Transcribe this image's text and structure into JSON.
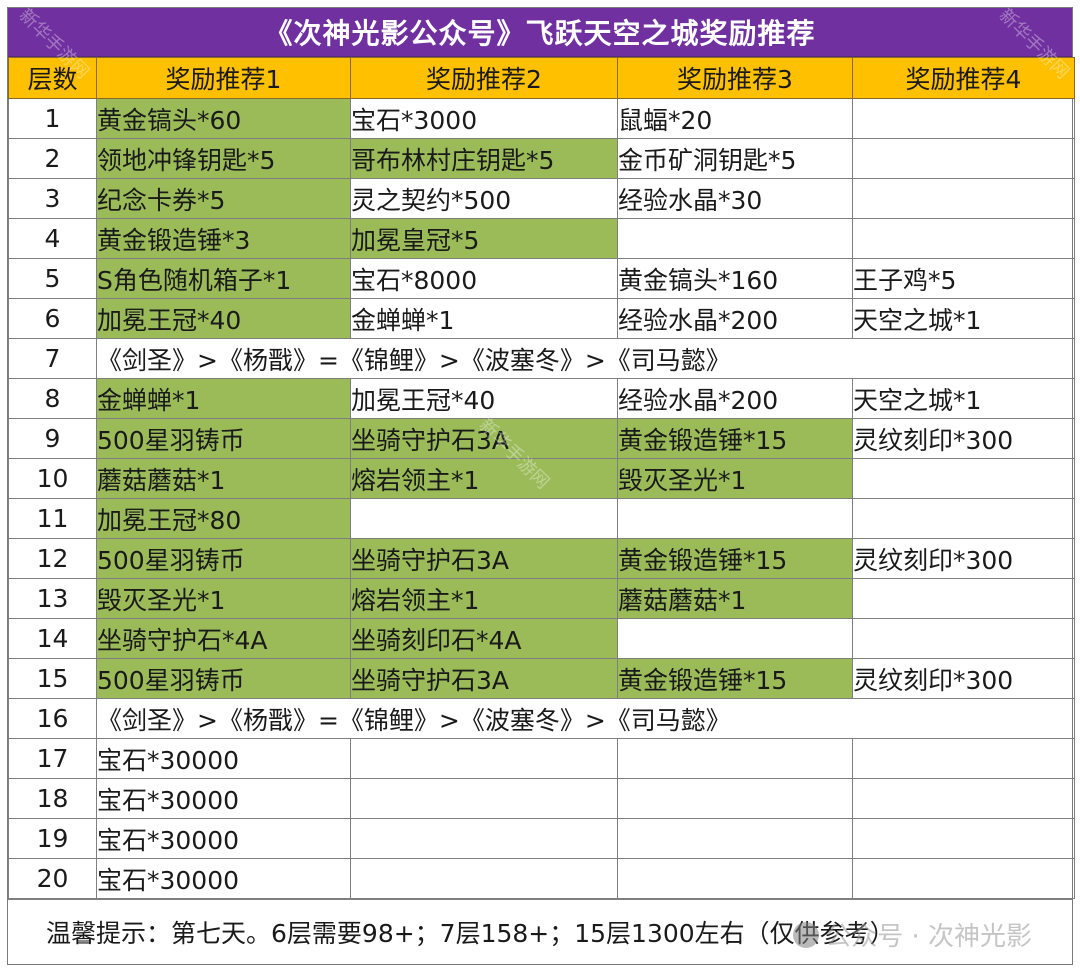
{
  "title": "《次神光影公众号》飞跃天空之城奖励推荐",
  "header": {
    "columns": [
      "层数",
      "奖励推荐1",
      "奖励推荐2",
      "奖励推荐3",
      "奖励推荐4"
    ]
  },
  "colors": {
    "title_bg": "#7030A0",
    "header_bg": "#FFC000",
    "highlight_green": "#9BBB59",
    "border": "#7f7f7f"
  },
  "rows": [
    {
      "floor": "1",
      "cells": [
        {
          "text": "黄金镐头*60",
          "hl": true
        },
        {
          "text": "宝石*3000",
          "hl": false
        },
        {
          "text": "鼠蝠*20",
          "hl": false
        },
        {
          "text": "",
          "hl": false
        }
      ]
    },
    {
      "floor": "2",
      "cells": [
        {
          "text": "领地冲锋钥匙*5",
          "hl": true
        },
        {
          "text": "哥布林村庄钥匙*5",
          "hl": true
        },
        {
          "text": "金币矿洞钥匙*5",
          "hl": false
        },
        {
          "text": "",
          "hl": false
        }
      ]
    },
    {
      "floor": "3",
      "cells": [
        {
          "text": "纪念卡券*5",
          "hl": true
        },
        {
          "text": "灵之契约*500",
          "hl": false
        },
        {
          "text": "经验水晶*30",
          "hl": false
        },
        {
          "text": "",
          "hl": false
        }
      ]
    },
    {
      "floor": "4",
      "cells": [
        {
          "text": "黄金锻造锤*3",
          "hl": true
        },
        {
          "text": "加冕皇冠*5",
          "hl": true
        },
        {
          "text": "",
          "hl": false
        },
        {
          "text": "",
          "hl": false
        }
      ]
    },
    {
      "floor": "5",
      "cells": [
        {
          "text": "S角色随机箱子*1",
          "hl": true
        },
        {
          "text": "宝石*8000",
          "hl": false
        },
        {
          "text": "黄金镐头*160",
          "hl": false
        },
        {
          "text": "王子鸡*5",
          "hl": false
        }
      ]
    },
    {
      "floor": "6",
      "cells": [
        {
          "text": "加冕王冠*40",
          "hl": true
        },
        {
          "text": "金蝉蝉*1",
          "hl": false
        },
        {
          "text": "经验水晶*200",
          "hl": false
        },
        {
          "text": "天空之城*1",
          "hl": false
        }
      ]
    },
    {
      "floor": "7",
      "merged": "《剑圣》>《杨戬》=《锦鲤》>《波塞冬》>《司马懿》"
    },
    {
      "floor": "8",
      "cells": [
        {
          "text": "金蝉蝉*1",
          "hl": true
        },
        {
          "text": "加冕王冠*40",
          "hl": false
        },
        {
          "text": "经验水晶*200",
          "hl": false
        },
        {
          "text": "天空之城*1",
          "hl": false
        }
      ]
    },
    {
      "floor": "9",
      "cells": [
        {
          "text": "500星羽铸币",
          "hl": true
        },
        {
          "text": "坐骑守护石3A",
          "hl": true
        },
        {
          "text": "黄金锻造锤*15",
          "hl": true
        },
        {
          "text": "灵纹刻印*300",
          "hl": false
        }
      ]
    },
    {
      "floor": "10",
      "cells": [
        {
          "text": "蘑菇蘑菇*1",
          "hl": true
        },
        {
          "text": "熔岩领主*1",
          "hl": true
        },
        {
          "text": "毁灭圣光*1",
          "hl": true
        },
        {
          "text": "",
          "hl": false
        }
      ]
    },
    {
      "floor": "11",
      "cells": [
        {
          "text": "加冕王冠*80",
          "hl": true
        },
        {
          "text": "",
          "hl": false
        },
        {
          "text": "",
          "hl": false
        },
        {
          "text": "",
          "hl": false
        }
      ]
    },
    {
      "floor": "12",
      "cells": [
        {
          "text": "500星羽铸币",
          "hl": true
        },
        {
          "text": "坐骑守护石3A",
          "hl": true
        },
        {
          "text": "黄金锻造锤*15",
          "hl": true
        },
        {
          "text": "灵纹刻印*300",
          "hl": false
        }
      ]
    },
    {
      "floor": "13",
      "cells": [
        {
          "text": "毁灭圣光*1",
          "hl": true
        },
        {
          "text": "熔岩领主*1",
          "hl": true
        },
        {
          "text": "蘑菇蘑菇*1",
          "hl": true
        },
        {
          "text": "",
          "hl": false
        }
      ]
    },
    {
      "floor": "14",
      "cells": [
        {
          "text": "坐骑守护石*4A",
          "hl": true
        },
        {
          "text": "坐骑刻印石*4A",
          "hl": true
        },
        {
          "text": "",
          "hl": false
        },
        {
          "text": "",
          "hl": false
        }
      ]
    },
    {
      "floor": "15",
      "cells": [
        {
          "text": "500星羽铸币",
          "hl": true
        },
        {
          "text": "坐骑守护石3A",
          "hl": true
        },
        {
          "text": "黄金锻造锤*15",
          "hl": true
        },
        {
          "text": "灵纹刻印*300",
          "hl": false
        }
      ]
    },
    {
      "floor": "16",
      "merged": "《剑圣》>《杨戬》=《锦鲤》>《波塞冬》>《司马懿》"
    },
    {
      "floor": "17",
      "cells": [
        {
          "text": "宝石*30000",
          "hl": false
        },
        {
          "text": "",
          "hl": false
        },
        {
          "text": "",
          "hl": false
        },
        {
          "text": "",
          "hl": false
        }
      ]
    },
    {
      "floor": "18",
      "cells": [
        {
          "text": "宝石*30000",
          "hl": false
        },
        {
          "text": "",
          "hl": false
        },
        {
          "text": "",
          "hl": false
        },
        {
          "text": "",
          "hl": false
        }
      ]
    },
    {
      "floor": "19",
      "cells": [
        {
          "text": "宝石*30000",
          "hl": false
        },
        {
          "text": "",
          "hl": false
        },
        {
          "text": "",
          "hl": false
        },
        {
          "text": "",
          "hl": false
        }
      ]
    },
    {
      "floor": "20",
      "cells": [
        {
          "text": "宝石*30000",
          "hl": false
        },
        {
          "text": "",
          "hl": false
        },
        {
          "text": "",
          "hl": false
        },
        {
          "text": "",
          "hl": false
        }
      ]
    }
  ],
  "footer": {
    "note": "温馨提示：第七天。6层需要98+；7层158+；15层1300左右（仅供参考）"
  },
  "watermarks": {
    "diagonal": "新华手游网",
    "footer_overlay": "公众号 · 次神光影"
  }
}
